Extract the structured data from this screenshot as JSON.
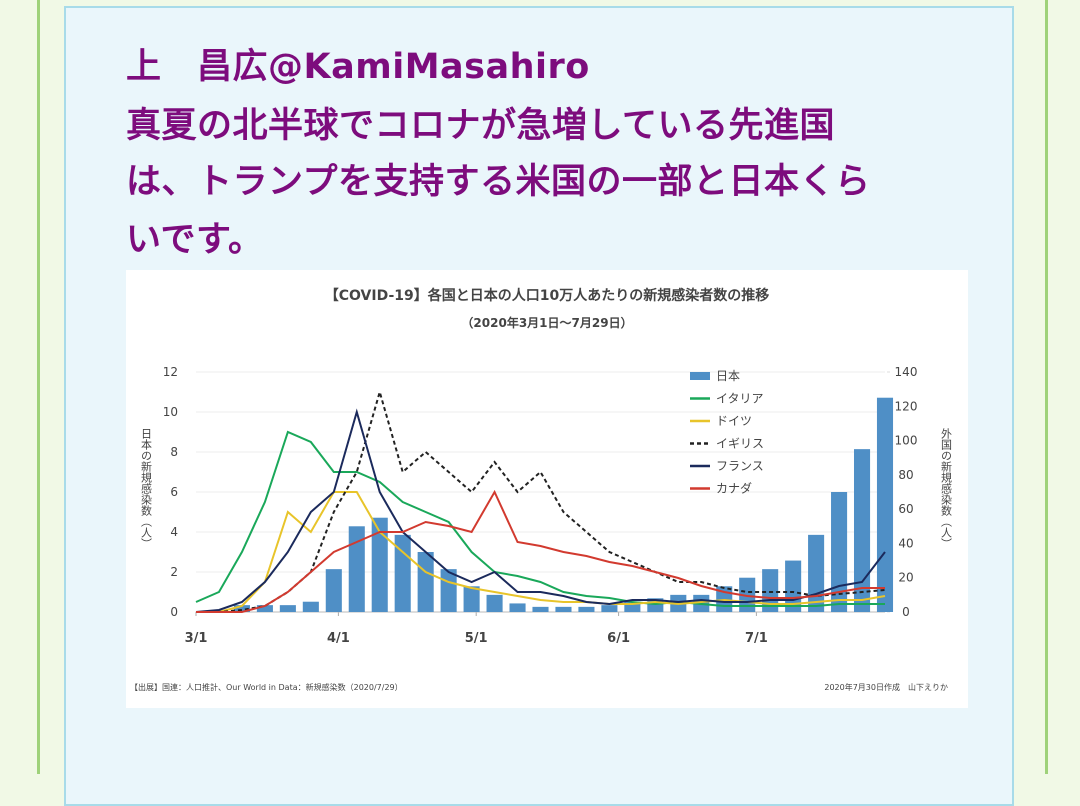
{
  "tweet": {
    "author": "上　昌広@KamiMasahiro",
    "lines": [
      "真夏の北半球でコロナが急増している先進国",
      "は、トランプを支持する米国の一部と日本くら",
      "いです。"
    ]
  },
  "chart_data": {
    "type": "bar-line",
    "title": "【COVID-19】各国と日本の人口10万人あたりの新規感染者数の推移",
    "subtitle": "（2020年3月1日〜7月29日）",
    "ylabel": "日本の新規感染数（人）",
    "y2label": "外国の新規感染数（人）",
    "source": "【出展】国連：人口推計、Our World in Data：新規感染数（2020/7/29）",
    "credit": "2020年7月30日作成　山下えりか",
    "x": [
      0,
      5,
      10,
      15,
      20,
      25,
      30,
      35,
      40,
      45,
      50,
      55,
      60,
      65,
      70,
      75,
      80,
      85,
      90,
      95,
      100,
      105,
      110,
      115,
      120,
      125,
      130,
      135,
      140,
      145,
      150
    ],
    "xlim": [
      0,
      150
    ],
    "xticks": [
      {
        "value": 0,
        "label": "3/1"
      },
      {
        "value": 31,
        "label": "4/1"
      },
      {
        "value": 61,
        "label": "5/1"
      },
      {
        "value": 92,
        "label": "6/1"
      },
      {
        "value": 122,
        "label": "7/1"
      }
    ],
    "ylim": [
      0,
      12
    ],
    "yticks": [
      0,
      2,
      4,
      6,
      8,
      10,
      12
    ],
    "y2lim": [
      0,
      140
    ],
    "y2ticks": [
      0,
      20,
      40,
      60,
      80,
      100,
      120,
      140
    ],
    "grid": true,
    "series": [
      {
        "name": "日本",
        "type": "bar",
        "axis": "y2",
        "color": "#4f8fc6",
        "values": [
          0,
          1,
          4,
          4,
          4,
          6,
          25,
          50,
          55,
          45,
          35,
          25,
          15,
          10,
          5,
          3,
          3,
          3,
          4,
          6,
          8,
          10,
          10,
          15,
          20,
          25,
          30,
          45,
          70,
          95,
          125
        ]
      },
      {
        "name": "イタリア",
        "type": "line",
        "color": "#1aa85a",
        "values": [
          0.5,
          1,
          3,
          5.5,
          9,
          8.5,
          7,
          7,
          6.5,
          5.5,
          5,
          4.5,
          3,
          2,
          1.8,
          1.5,
          1,
          0.8,
          0.7,
          0.5,
          0.4,
          0.5,
          0.4,
          0.3,
          0.3,
          0.3,
          0.3,
          0.3,
          0.4,
          0.4,
          0.4
        ]
      },
      {
        "name": "ドイツ",
        "type": "line",
        "color": "#e8c42a",
        "values": [
          0,
          0,
          0.3,
          1.5,
          5,
          4,
          6,
          6,
          4,
          3,
          2,
          1.5,
          1.2,
          1,
          0.8,
          0.6,
          0.5,
          0.5,
          0.4,
          0.4,
          0.5,
          0.4,
          0.5,
          0.6,
          0.5,
          0.4,
          0.4,
          0.5,
          0.6,
          0.6,
          0.8
        ]
      },
      {
        "name": "イギリス",
        "type": "line",
        "dashed": true,
        "color": "#222222",
        "values": [
          0,
          0,
          0.1,
          0.3,
          1,
          2,
          5,
          7,
          11,
          7,
          8,
          7,
          6,
          7.5,
          6,
          7,
          5,
          4,
          3,
          2.5,
          2,
          1.5,
          1.5,
          1.2,
          1,
          1,
          1,
          0.8,
          0.9,
          1,
          1.1
        ]
      },
      {
        "name": "フランス",
        "type": "line",
        "color": "#1b2a5c",
        "values": [
          0,
          0.1,
          0.5,
          1.5,
          3,
          5,
          6,
          10,
          6,
          4,
          3,
          2,
          1.5,
          2,
          1,
          1,
          0.8,
          0.5,
          0.4,
          0.6,
          0.6,
          0.5,
          0.6,
          0.5,
          0.5,
          0.6,
          0.6,
          0.9,
          1.3,
          1.5,
          3
        ]
      },
      {
        "name": "カナダ",
        "type": "line",
        "color": "#d23a2f",
        "values": [
          0,
          0,
          0,
          0.3,
          1,
          2,
          3,
          3.5,
          4,
          4,
          4.5,
          4.3,
          4,
          6,
          3.5,
          3.3,
          3,
          2.8,
          2.5,
          2.3,
          2,
          1.7,
          1.3,
          1,
          0.8,
          0.7,
          0.7,
          0.8,
          1,
          1.2,
          1.2
        ]
      }
    ]
  }
}
